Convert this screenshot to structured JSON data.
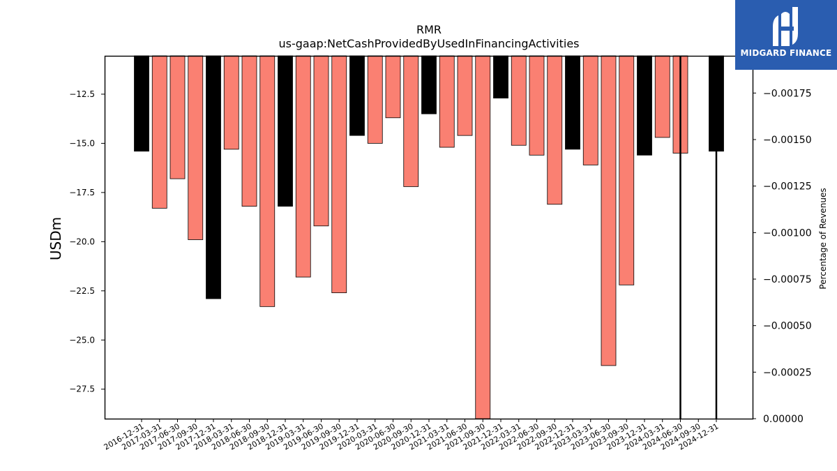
{
  "chart_data": {
    "type": "bar",
    "title": "RMR",
    "subtitle": "us-gaap:NetCashProvidedByUsedInFinancingActivities",
    "ylabel": "USDm",
    "y2label": "Percentage of Revenues",
    "ylim": [
      -29.0,
      -10.55
    ],
    "y2lim": [
      0.0,
      -0.00195
    ],
    "yticks": [
      -12.5,
      -15.0,
      -17.5,
      -20.0,
      -22.5,
      -25.0,
      -27.5
    ],
    "y2ticks": [
      0.0,
      -0.00025,
      -0.0005,
      -0.00075,
      -0.001,
      -0.00125,
      -0.0015,
      -0.00175
    ],
    "categories": [
      "2016-12-31",
      "2017-03-31",
      "2017-06-30",
      "2017-09-30",
      "2017-12-31",
      "2018-03-31",
      "2018-06-30",
      "2018-09-30",
      "2018-12-31",
      "2019-03-31",
      "2019-06-30",
      "2019-09-30",
      "2019-12-31",
      "2020-03-31",
      "2020-06-30",
      "2020-09-30",
      "2020-12-31",
      "2021-03-31",
      "2021-06-30",
      "2021-09-30",
      "2021-12-31",
      "2022-03-31",
      "2022-06-30",
      "2022-09-30",
      "2022-12-31",
      "2023-03-31",
      "2023-06-30",
      "2023-09-30",
      "2023-12-31",
      "2024-03-31",
      "2024-06-30",
      "2024-09-30",
      "2024-12-31"
    ],
    "values": [
      -15.4,
      -18.3,
      -16.8,
      -19.9,
      -22.9,
      -15.3,
      -18.2,
      -23.3,
      -18.2,
      -21.8,
      -19.2,
      -22.6,
      -14.6,
      -15.0,
      -13.7,
      -17.2,
      -13.5,
      -15.2,
      -14.6,
      -29.0,
      -12.7,
      -15.1,
      -15.6,
      -18.1,
      -15.3,
      -16.1,
      -26.3,
      -22.2,
      -15.6,
      -14.7,
      -15.5,
      null,
      -15.4
    ],
    "colors": [
      "black",
      "salmon",
      "salmon",
      "salmon",
      "black",
      "salmon",
      "salmon",
      "salmon",
      "black",
      "salmon",
      "salmon",
      "salmon",
      "black",
      "salmon",
      "salmon",
      "salmon",
      "black",
      "salmon",
      "salmon",
      "salmon",
      "black",
      "salmon",
      "salmon",
      "salmon",
      "black",
      "salmon",
      "salmon",
      "salmon",
      "black",
      "salmon",
      "salmon",
      null,
      "black"
    ],
    "pct_lines": [
      {
        "category": "2024-06-30",
        "value": 0.0
      },
      {
        "category": "2024-12-31",
        "value": 0.0
      }
    ],
    "palette": {
      "black": "#000000",
      "salmon": "#fa8072"
    }
  },
  "logo": {
    "text": "MIDGARD FINANCE",
    "color": "#2a5db0"
  }
}
